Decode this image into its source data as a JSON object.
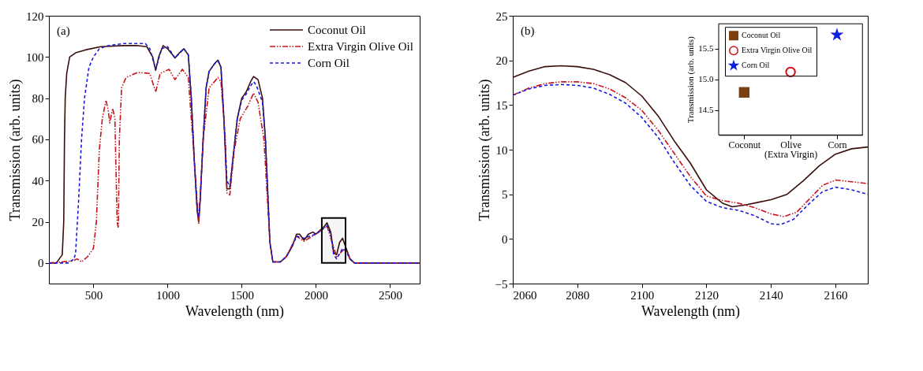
{
  "chart_data": [
    {
      "type": "line",
      "xlabel": "Wavelength (nm)",
      "ylabel": "Transmission (arb. units)",
      "annotations": [
        "(a)"
      ],
      "xlim": [
        200,
        2700
      ],
      "xticks": [
        500,
        1000,
        1500,
        2000,
        2500
      ],
      "ylim": [
        -10,
        120
      ],
      "yticks": [
        0,
        20,
        40,
        60,
        80,
        100,
        120
      ],
      "legend": "top right",
      "bands": [
        {
          "axis": "x",
          "from": 2040,
          "to": 2200,
          "color": "#000000"
        }
      ],
      "series": [
        {
          "name": "Coconut Oil",
          "color": "#3a0e0a",
          "line_style": "solid",
          "x": [
            200,
            250,
            270,
            290,
            300,
            305,
            310,
            320,
            340,
            380,
            450,
            550,
            700,
            800,
            860,
            900,
            920,
            940,
            970,
            1000,
            1050,
            1080,
            1110,
            1140,
            1160,
            1180,
            1200,
            1210,
            1220,
            1240,
            1260,
            1280,
            1320,
            1340,
            1360,
            1380,
            1400,
            1420,
            1440,
            1470,
            1500,
            1530,
            1560,
            1580,
            1610,
            1640,
            1660,
            1690,
            1710,
            1760,
            1800,
            1840,
            1870,
            1890,
            1920,
            1950,
            1980,
            2000,
            2030,
            2060,
            2075,
            2100,
            2120,
            2140,
            2160,
            2180,
            2200,
            2230,
            2260,
            2700
          ],
          "values": [
            0,
            0,
            2,
            4,
            20,
            60,
            80,
            92,
            100,
            102,
            103.5,
            105,
            105.5,
            105.5,
            105,
            100,
            93.5,
            100,
            105.5,
            104,
            99.5,
            102,
            104,
            101,
            80,
            50,
            25,
            20,
            30,
            60,
            85,
            93,
            97,
            98.5,
            95,
            70,
            36,
            36,
            50,
            70,
            80,
            83,
            88,
            90.5,
            89,
            80,
            60,
            10,
            0.5,
            0.5,
            3,
            8,
            14,
            14,
            11,
            14,
            15,
            14,
            16,
            18,
            19.5,
            15,
            5,
            4,
            10,
            12,
            8,
            2,
            0,
            0
          ]
        },
        {
          "name": "Extra Virgin Olive Oil",
          "color": "#c8141c",
          "line_style": "dashdot",
          "x": [
            200,
            360,
            390,
            420,
            460,
            500,
            520,
            540,
            560,
            585,
            600,
            610,
            630,
            645,
            660,
            668,
            675,
            690,
            720,
            800,
            880,
            920,
            950,
            1010,
            1050,
            1100,
            1140,
            1160,
            1190,
            1210,
            1240,
            1280,
            1340,
            1360,
            1390,
            1400,
            1420,
            1450,
            1490,
            1540,
            1580,
            1610,
            1650,
            1690,
            1710,
            1760,
            1800,
            1870,
            1920,
            2000,
            2075,
            2140,
            2180,
            2200,
            2230,
            2260,
            2700
          ],
          "values": [
            0,
            1,
            2,
            0.5,
            3,
            7,
            20,
            55,
            70,
            79,
            74,
            68,
            75,
            70,
            20,
            17,
            60,
            85,
            90,
            92.5,
            92,
            83,
            92,
            94,
            89,
            94,
            90,
            70,
            40,
            19,
            60,
            85,
            90,
            88,
            60,
            34,
            33,
            55,
            70,
            76,
            82.5,
            78,
            60,
            10,
            0.5,
            0.5,
            3,
            13,
            10.5,
            14,
            18,
            3,
            6,
            7,
            2,
            0,
            0
          ]
        },
        {
          "name": "Corn Oil",
          "color": "#1a1adf",
          "line_style": "dashed",
          "x": [
            200,
            330,
            370,
            380,
            400,
            420,
            440,
            470,
            500,
            540,
            600,
            700,
            850,
            880,
            920,
            960,
            1000,
            1050,
            1110,
            1140,
            1160,
            1180,
            1200,
            1210,
            1220,
            1240,
            1260,
            1280,
            1320,
            1340,
            1360,
            1380,
            1400,
            1420,
            1440,
            1470,
            1500,
            1530,
            1560,
            1580,
            1600,
            1640,
            1660,
            1690,
            1710,
            1760,
            1800,
            1840,
            1870,
            1920,
            2000,
            2075,
            2100,
            2120,
            2140,
            2180,
            2200,
            2230,
            2260,
            2700
          ],
          "values": [
            0,
            0,
            2,
            5,
            30,
            60,
            80,
            95,
            100,
            104,
            105.5,
            106.5,
            106.5,
            104,
            94,
            104,
            105,
            99.5,
            104,
            101,
            80,
            50,
            26,
            22,
            31,
            60,
            85,
            93,
            97,
            98,
            95,
            70,
            40,
            37,
            50,
            70,
            79,
            82,
            86,
            88,
            86,
            78,
            60,
            10,
            0.5,
            0.5,
            3,
            8,
            13,
            12,
            14,
            18,
            14,
            4,
            2,
            7,
            6,
            2,
            0,
            0
          ]
        }
      ]
    },
    {
      "type": "line",
      "xlabel": "Wavelength (nm)",
      "ylabel": "Transmission (arb. units)",
      "annotations": [
        "(b)"
      ],
      "xlim": [
        2060,
        2170
      ],
      "xticks": [
        2060,
        2080,
        2100,
        2120,
        2140,
        2160
      ],
      "ylim": [
        -5,
        25
      ],
      "yticks": [
        -5,
        0,
        5,
        10,
        15,
        20,
        25
      ],
      "series": [
        {
          "color": "#3a0e0a",
          "line_style": "solid",
          "x": [
            2060,
            2065,
            2070,
            2075,
            2080,
            2085,
            2090,
            2095,
            2100,
            2105,
            2110,
            2115,
            2120,
            2125,
            2128,
            2132,
            2136,
            2140,
            2145,
            2150,
            2155,
            2160,
            2165,
            2170
          ],
          "values": [
            18.1,
            18.8,
            19.3,
            19.4,
            19.3,
            19,
            18.4,
            17.5,
            16,
            13.8,
            11,
            8.5,
            5.5,
            4,
            3.6,
            3.8,
            4.1,
            4.4,
            5,
            6.5,
            8.2,
            9.5,
            10.1,
            10.3
          ]
        },
        {
          "color": "#c8141c",
          "line_style": "dashdot",
          "x": [
            2060,
            2065,
            2070,
            2075,
            2080,
            2085,
            2090,
            2095,
            2100,
            2105,
            2110,
            2115,
            2120,
            2125,
            2130,
            2135,
            2140,
            2144,
            2148,
            2152,
            2156,
            2160,
            2165,
            2170
          ],
          "values": [
            16.1,
            16.9,
            17.4,
            17.6,
            17.6,
            17.4,
            16.8,
            15.8,
            14.4,
            12.2,
            9.6,
            7,
            4.8,
            4.3,
            4,
            3.5,
            2.8,
            2.5,
            3,
            4.5,
            6,
            6.6,
            6.4,
            6.2
          ]
        },
        {
          "color": "#1a1adf",
          "line_style": "dashed",
          "x": [
            2060,
            2065,
            2070,
            2075,
            2080,
            2085,
            2090,
            2095,
            2100,
            2105,
            2110,
            2115,
            2120,
            2125,
            2130,
            2135,
            2140,
            2143,
            2147,
            2152,
            2156,
            2160,
            2165,
            2170
          ],
          "values": [
            16.1,
            16.8,
            17.2,
            17.3,
            17.2,
            16.9,
            16.2,
            15.2,
            13.6,
            11.4,
            8.6,
            6,
            4.2,
            3.5,
            3.2,
            2.6,
            1.7,
            1.6,
            2.2,
            4,
            5.3,
            5.8,
            5.5,
            5
          ]
        }
      ]
    },
    {
      "type": "scatter",
      "ylabel": "Transmission (arb. units)",
      "categories": [
        "Coconut",
        "Olive (Extra Virgin)",
        "Corn"
      ],
      "ylim": [
        14.1,
        15.9
      ],
      "yticks": [
        14.5,
        {
          "value": 15,
          "label": "15.0"
        },
        15.5
      ],
      "legend": "top left",
      "series": [
        {
          "name": "Coconut Oil",
          "color": "#7b3f10",
          "marker": "square",
          "values": [
            14.79,
            null,
            null
          ]
        },
        {
          "name": "Extra Virgin Olive Oil",
          "color": "#d0101a",
          "marker": "circle",
          "values": [
            null,
            15.12,
            null
          ]
        },
        {
          "name": "Corn Oil",
          "color": "#1020e0",
          "marker": "star",
          "values": [
            null,
            null,
            15.72
          ]
        }
      ]
    }
  ]
}
